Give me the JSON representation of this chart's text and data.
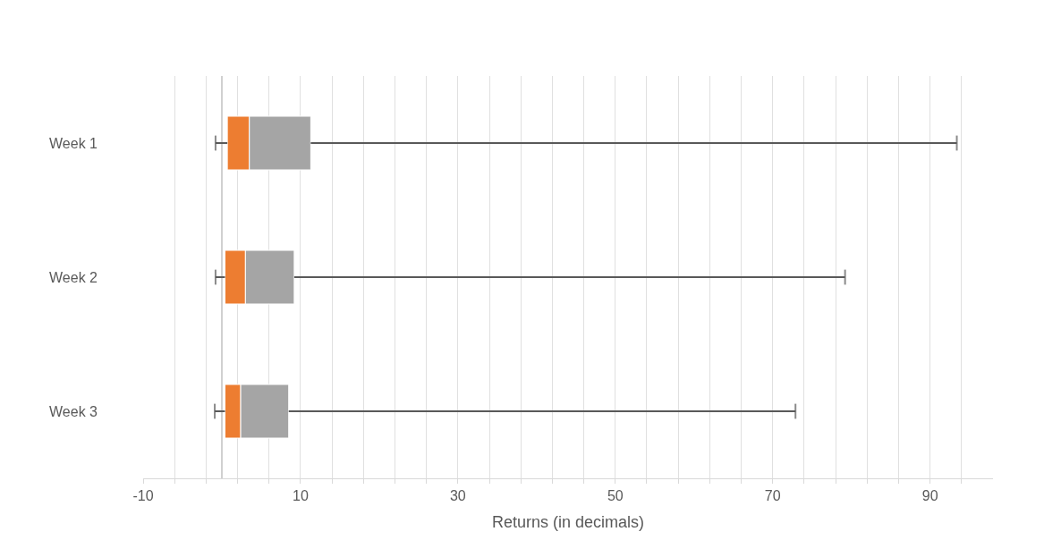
{
  "chart_data": {
    "type": "box",
    "orientation": "horizontal",
    "xlabel": "Returns (in decimals)",
    "categories": [
      "Week 1",
      "Week 2",
      "Week 3"
    ],
    "series": [
      {
        "color": "#ed7d31",
        "boxes": [
          {
            "low": -0.8,
            "q1": 0.7,
            "median": 3.5,
            "q3": 11.3,
            "high": 93.4
          },
          {
            "low": -0.8,
            "q1": 0.4,
            "median": 3.0,
            "q3": 9.2,
            "high": 79.2
          },
          {
            "low": -0.9,
            "q1": 0.4,
            "median": 2.4,
            "q3": 8.5,
            "high": 72.9
          }
        ]
      }
    ],
    "color": "#a5a5a5",
    "xlim": [
      -10,
      98
    ],
    "xticks": [
      -10,
      {
        "value": -6,
        "label": null
      },
      {
        "value": -2,
        "label": null
      },
      {
        "value": 2,
        "label": null
      },
      {
        "value": 6,
        "label": null
      },
      10,
      {
        "value": 14,
        "label": null
      },
      {
        "value": 18,
        "label": null
      },
      {
        "value": 22,
        "label": null
      },
      {
        "value": 26,
        "label": null
      },
      30,
      {
        "value": 34,
        "label": null
      },
      {
        "value": 38,
        "label": null
      },
      {
        "value": 42,
        "label": null
      },
      {
        "value": 46,
        "label": null
      },
      50,
      {
        "value": 54,
        "label": null
      },
      {
        "value": 58,
        "label": null
      },
      {
        "value": 62,
        "label": null
      },
      {
        "value": 66,
        "label": null
      },
      70,
      {
        "value": 74,
        "label": null
      },
      {
        "value": 78,
        "label": null
      },
      {
        "value": 82,
        "label": null
      },
      {
        "value": 86,
        "label": null
      },
      90,
      {
        "value": 94,
        "label": null
      }
    ],
    "grid": "x"
  }
}
